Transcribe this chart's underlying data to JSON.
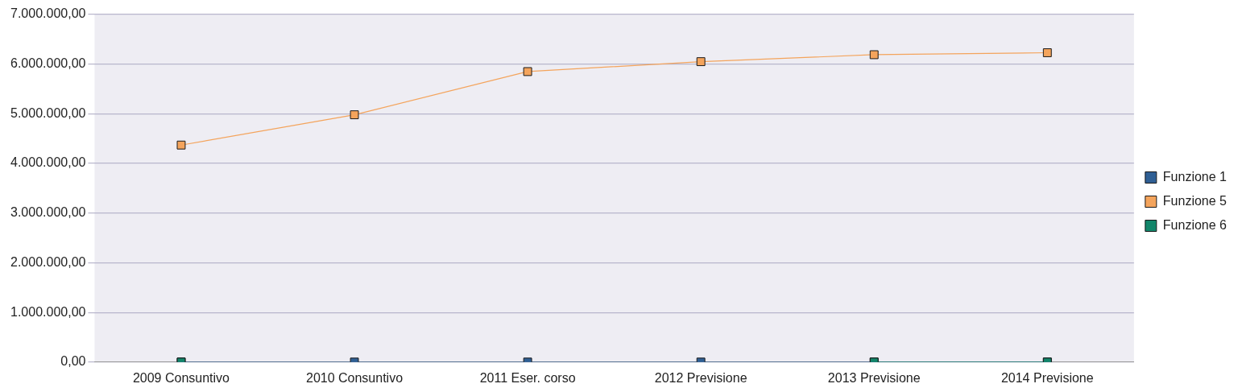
{
  "chart_data": {
    "type": "line",
    "categories": [
      "2009 Consuntivo",
      "2010 Consuntivo",
      "2011 Eser. corso",
      "2012 Previsione",
      "2013 Previsione",
      "2014 Previsione"
    ],
    "series": [
      {
        "name": "Funzione 1",
        "color": "#2f5f94",
        "values": [
          0,
          0,
          0,
          0,
          0,
          0
        ]
      },
      {
        "name": "Funzione 5",
        "color": "#f4a45c",
        "values": [
          4370000,
          4980000,
          5850000,
          6050000,
          6190000,
          6230000
        ]
      },
      {
        "name": "Funzione 6",
        "color": "#12866a",
        "values": [
          0,
          null,
          null,
          null,
          0,
          0
        ]
      }
    ],
    "ylim": [
      0,
      7000000
    ],
    "yticks": [
      {
        "value": 0,
        "label": "0,00"
      },
      {
        "value": 1000000,
        "label": "1.000.000,00"
      },
      {
        "value": 2000000,
        "label": "2.000.000,00"
      },
      {
        "value": 3000000,
        "label": "3.000.000,00"
      },
      {
        "value": 4000000,
        "label": "4.000.000,00"
      },
      {
        "value": 5000000,
        "label": "5.000.000,00"
      },
      {
        "value": 6000000,
        "label": "6.000.000,00"
      },
      {
        "value": 7000000,
        "label": "7.000.000,00"
      }
    ],
    "grid": "y",
    "legend": "right",
    "marker": "square",
    "line_style": "solid"
  }
}
